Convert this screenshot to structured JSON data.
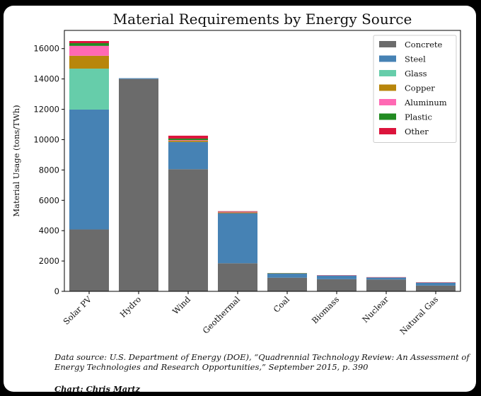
{
  "chart_data": {
    "type": "bar",
    "stacked": true,
    "title": "Material Requirements by Energy Source",
    "xlabel": "",
    "ylabel": "Material Usage (tons/TWh)",
    "ylim": [
      0,
      17200
    ],
    "yticks": [
      0,
      2000,
      4000,
      6000,
      8000,
      10000,
      12000,
      14000,
      16000
    ],
    "categories": [
      "Solar PV",
      "Hydro",
      "Wind",
      "Geothermal",
      "Coal",
      "Biomass",
      "Nuclear",
      "Natural Gas"
    ],
    "series": [
      {
        "name": "Concrete",
        "color": "#6b6b6b",
        "values": [
          4080,
          14000,
          8050,
          1850,
          900,
          800,
          780,
          380
        ]
      },
      {
        "name": "Steel",
        "color": "#4682b4",
        "values": [
          7900,
          50,
          1800,
          3300,
          280,
          260,
          150,
          210
        ]
      },
      {
        "name": "Glass",
        "color": "#66cdaa",
        "values": [
          2700,
          0,
          0,
          0,
          0,
          0,
          0,
          0
        ]
      },
      {
        "name": "Copper",
        "color": "#b8860b",
        "values": [
          850,
          0,
          80,
          50,
          10,
          5,
          5,
          5
        ]
      },
      {
        "name": "Aluminum",
        "color": "#ff69b4",
        "values": [
          650,
          0,
          40,
          50,
          5,
          5,
          5,
          5
        ]
      },
      {
        "name": "Plastic",
        "color": "#228b22",
        "values": [
          180,
          0,
          100,
          20,
          5,
          0,
          0,
          0
        ]
      },
      {
        "name": "Other",
        "color": "#dc143c",
        "values": [
          140,
          0,
          190,
          10,
          0,
          0,
          0,
          0
        ]
      }
    ],
    "legend_position": "top-right",
    "grid": false
  },
  "source_note": "Data source: U.S. Department of Energy (DOE), “Quadrennial Technology Review: An Assessment of Energy Technologies and Research Opportunities,” September 2015, p. 390",
  "credit": "Chart: Chris Martz"
}
